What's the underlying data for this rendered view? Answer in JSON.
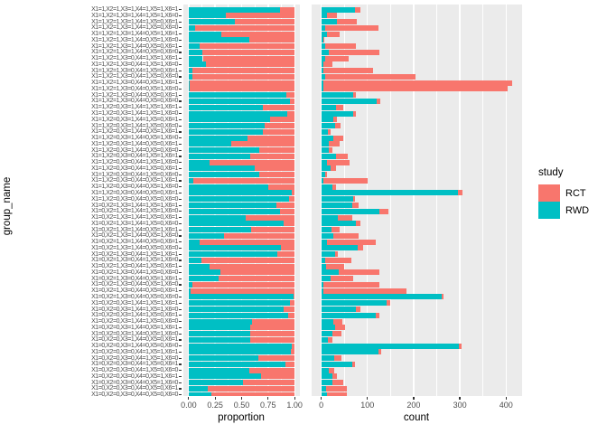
{
  "figure": {
    "background": "#FFFFFF",
    "panel_background": "#EBEBEB",
    "gridline_color": "#FFFFFF",
    "tick_text_color": "#4D4D4D",
    "title_text_color": "#000000"
  },
  "legend": {
    "title": "study",
    "entries": [
      {
        "label": "RCT",
        "color": "#F8766D"
      },
      {
        "label": "RWD",
        "color": "#00BFC4"
      }
    ]
  },
  "chart_data": {
    "type": "bar",
    "orientation": "horizontal",
    "stacked": true,
    "ylabel": "group_name",
    "legend_position": "right",
    "facets": [
      {
        "id": "proportion",
        "xlabel": "proportion",
        "position": "fill",
        "x_ticks": [
          0,
          0.25,
          0.5,
          0.75,
          1
        ],
        "x_tick_labels": [
          "0.00",
          "0.25",
          "0.50",
          "0.75",
          "1.00"
        ],
        "x_minor_ticks": [
          0.125,
          0.375,
          0.625,
          0.875
        ]
      },
      {
        "id": "count",
        "xlabel": "count",
        "position": "stack",
        "x_ticks": [
          0,
          100,
          200,
          300,
          400
        ],
        "x_tick_labels": [
          "0",
          "100",
          "200",
          "300",
          "400"
        ],
        "x_minor_ticks": [
          50,
          150,
          250,
          350
        ]
      }
    ],
    "categories": [
      "X1=1,X2=1,X3=1,X4=1,X5=1,X6=1",
      "X1=1,X2=1,X3=1,X4=1,X5=1,X6=0",
      "X1=1,X2=1,X3=1,X4=1,X5=0,X6=1",
      "X1=1,X2=1,X3=1,X4=1,X5=0,X6=0",
      "X1=1,X2=1,X3=1,X4=0,X5=1,X6=1",
      "X1=1,X2=1,X3=1,X4=0,X5=1,X6=0",
      "X1=1,X2=1,X3=1,X4=0,X5=0,X6=1",
      "X1=1,X2=1,X3=1,X4=0,X5=0,X6=0",
      "X1=1,X2=1,X3=0,X4=1,X5=1,X6=1",
      "X1=1,X2=1,X3=0,X4=1,X5=1,X6=0",
      "X1=1,X2=1,X3=0,X4=1,X5=0,X6=1",
      "X1=1,X2=1,X3=0,X4=1,X5=0,X6=0",
      "X1=1,X2=1,X3=0,X4=0,X5=1,X6=1",
      "X1=1,X2=1,X3=0,X4=0,X5=1,X6=0",
      "X1=1,X2=1,X3=0,X4=0,X5=0,X6=1",
      "X1=1,X2=1,X3=0,X4=0,X5=0,X6=0",
      "X1=1,X2=0,X3=1,X4=1,X5=1,X6=1",
      "X1=1,X2=0,X3=1,X4=1,X5=1,X6=0",
      "X1=1,X2=0,X3=1,X4=1,X5=0,X6=1",
      "X1=1,X2=0,X3=1,X4=1,X5=0,X6=0",
      "X1=1,X2=0,X3=1,X4=0,X5=1,X6=1",
      "X1=1,X2=0,X3=1,X4=0,X5=1,X6=0",
      "X1=1,X2=0,X3=1,X4=0,X5=0,X6=1",
      "X1=1,X2=0,X3=1,X4=0,X5=0,X6=0",
      "X1=1,X2=0,X3=0,X4=1,X5=1,X6=1",
      "X1=1,X2=0,X3=0,X4=1,X5=1,X6=0",
      "X1=1,X2=0,X3=0,X4=1,X5=0,X6=1",
      "X1=1,X2=0,X3=0,X4=1,X5=0,X6=0",
      "X1=1,X2=0,X3=0,X4=0,X5=1,X6=1",
      "X1=1,X2=0,X3=0,X4=0,X5=1,X6=0",
      "X1=1,X2=0,X3=0,X4=0,X5=0,X6=1",
      "X1=1,X2=0,X3=0,X4=0,X5=0,X6=0",
      "X1=0,X2=1,X3=1,X4=1,X5=1,X6=1",
      "X1=0,X2=1,X3=1,X4=1,X5=1,X6=0",
      "X1=0,X2=1,X3=1,X4=1,X5=0,X6=1",
      "X1=0,X2=1,X3=1,X4=1,X5=0,X6=0",
      "X1=0,X2=1,X3=1,X4=0,X5=1,X6=1",
      "X1=0,X2=1,X3=1,X4=0,X5=1,X6=0",
      "X1=0,X2=1,X3=1,X4=0,X5=0,X6=1",
      "X1=0,X2=1,X3=1,X4=0,X5=0,X6=0",
      "X1=0,X2=1,X3=0,X4=1,X5=1,X6=1",
      "X1=0,X2=1,X3=0,X4=1,X5=1,X6=0",
      "X1=0,X2=1,X3=0,X4=1,X5=0,X6=1",
      "X1=0,X2=1,X3=0,X4=1,X5=0,X6=0",
      "X1=0,X2=1,X3=0,X4=0,X5=1,X6=1",
      "X1=0,X2=1,X3=0,X4=0,X5=1,X6=0",
      "X1=0,X2=1,X3=0,X4=0,X5=0,X6=1",
      "X1=0,X2=1,X3=0,X4=0,X5=0,X6=0",
      "X1=0,X2=0,X3=1,X4=1,X5=1,X6=1",
      "X1=0,X2=0,X3=1,X4=1,X5=1,X6=0",
      "X1=0,X2=0,X3=1,X4=1,X5=0,X6=1",
      "X1=0,X2=0,X3=1,X4=1,X5=0,X6=0",
      "X1=0,X2=0,X3=1,X4=0,X5=1,X6=1",
      "X1=0,X2=0,X3=1,X4=0,X5=1,X6=0",
      "X1=0,X2=0,X3=1,X4=0,X5=0,X6=1",
      "X1=0,X2=0,X3=1,X4=0,X5=0,X6=0",
      "X1=0,X2=0,X3=0,X4=1,X5=1,X6=1",
      "X1=0,X2=0,X3=0,X4=1,X5=1,X6=0",
      "X1=0,X2=0,X3=0,X4=1,X5=0,X6=1",
      "X1=0,X2=0,X3=0,X4=1,X5=0,X6=0",
      "X1=0,X2=0,X3=0,X4=0,X5=1,X6=1",
      "X1=0,X2=0,X3=0,X4=0,X5=1,X6=0",
      "X1=0,X2=0,X3=0,X4=0,X5=0,X6=1",
      "X1=0,X2=0,X3=0,X4=0,X5=0,X6=0"
    ],
    "series": [
      {
        "name": "RWD",
        "color": "#00BFC4",
        "values": [
          73,
          12,
          34,
          8,
          12,
          4,
          8,
          16,
          8,
          4,
          4,
          8,
          4,
          4,
          69,
          121,
          33,
          70,
          26,
          30,
          14,
          26,
          16,
          16,
          33,
          12,
          20,
          8,
          4,
          24,
          296,
          69,
          67,
          126,
          36,
          75,
          23,
          27,
          12,
          79,
          30,
          8,
          10,
          37,
          20,
          4,
          4,
          261,
          142,
          75,
          118,
          27,
          30,
          25,
          14,
          297,
          124,
          29,
          67,
          16,
          24,
          24,
          10,
          12
        ]
      },
      {
        "name": "RCT",
        "color": "#F8766D",
        "values": [
          12,
          22,
          44,
          115,
          27,
          3,
          68,
          110,
          52,
          20,
          108,
          196,
          410,
          400,
          6,
          6,
          14,
          5,
          8,
          12,
          6,
          21,
          24,
          8,
          24,
          49,
          12,
          4,
          96,
          8,
          9,
          4,
          14,
          20,
          31,
          9,
          16,
          53,
          106,
          12,
          6,
          57,
          40,
          88,
          50,
          122,
          180,
          3,
          7,
          9,
          8,
          18,
          22,
          18,
          10,
          7,
          5,
          15,
          6,
          12,
          11,
          23,
          45,
          44
        ]
      }
    ]
  }
}
